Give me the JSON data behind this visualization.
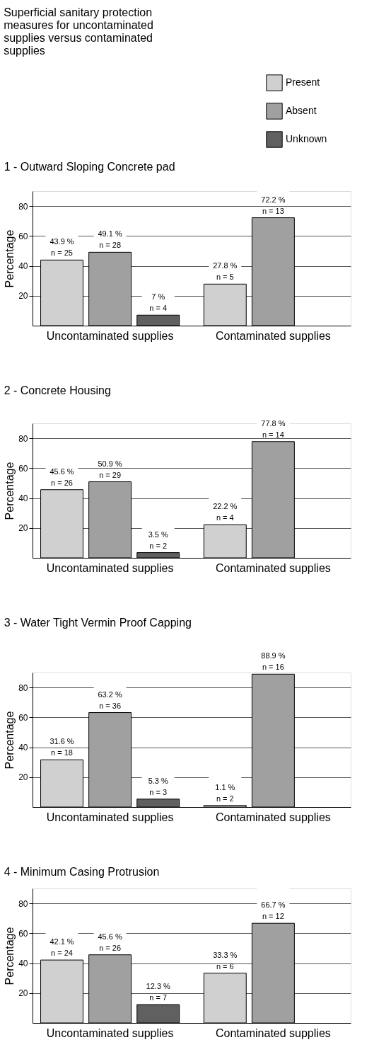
{
  "chart_data": [
    {
      "type": "bar",
      "title": "1 - Outward Sloping Concrete pad",
      "annotations": [
        "Superficial sanitary protection measures for uncontaminated supplies versus contaminated supplies"
      ],
      "ylabel": "Percentage",
      "categories": [
        "Uncontaminated supplies",
        "Contaminated supplies"
      ],
      "ylim": [
        0,
        90
      ],
      "yticks": [
        20,
        40,
        60,
        80
      ],
      "grid": "y",
      "legend": "top right",
      "series": [
        {
          "name": "Present",
          "color": "#d0d0d0",
          "values": [
            43.9,
            27.8
          ],
          "value_labels": [
            "43.9 %\nn = 25",
            "27.8 %\nn = 5"
          ]
        },
        {
          "name": "Absent",
          "color": "#a0a0a0",
          "values": [
            49.1,
            72.2
          ],
          "value_labels": [
            "49.1 %\nn = 28",
            "72.2 %\nn = 13"
          ]
        },
        {
          "name": "Unknown",
          "color": "#606060",
          "values": [
            7,
            null
          ],
          "value_labels": [
            "7 %\nn = 4",
            null
          ]
        }
      ]
    },
    {
      "type": "bar",
      "title": "2 - Concrete Housing",
      "ylabel": "Percentage",
      "categories": [
        "Uncontaminated supplies",
        "Contaminated supplies"
      ],
      "ylim": [
        0,
        90
      ],
      "yticks": [
        20,
        40,
        60,
        80
      ],
      "grid": "y",
      "series": [
        {
          "color": "#d0d0d0",
          "values": [
            45.6,
            22.2
          ],
          "value_labels": [
            "45.6 %\nn = 26",
            "22.2 %\nn = 4"
          ]
        },
        {
          "color": "#a0a0a0",
          "values": [
            50.9,
            77.8
          ],
          "value_labels": [
            "50.9 %\nn = 29",
            "77.8 %\nn = 14"
          ]
        },
        {
          "color": "#606060",
          "values": [
            3.5,
            null
          ],
          "value_labels": [
            "3.5 %\nn = 2",
            null
          ]
        }
      ]
    },
    {
      "type": "bar",
      "title": "3 - Water Tight Vermin Proof Capping",
      "ylabel": "Percentage",
      "categories": [
        "Uncontaminated supplies",
        "Contaminated supplies"
      ],
      "ylim": [
        0,
        90
      ],
      "yticks": [
        20,
        40,
        60,
        80
      ],
      "grid": "y",
      "series": [
        {
          "color": "#d0d0d0",
          "values": [
            31.6,
            1.1
          ],
          "value_labels": [
            "31.6 %\nn = 18",
            "1.1 %\nn = 2"
          ]
        },
        {
          "color": "#a0a0a0",
          "values": [
            63.2,
            88.9
          ],
          "value_labels": [
            "63.2 %\nn = 36",
            "88.9 %\nn = 16"
          ]
        },
        {
          "color": "#606060",
          "values": [
            5.3,
            null
          ],
          "value_labels": [
            "5.3 %\nn = 3",
            null
          ]
        }
      ]
    },
    {
      "type": "bar",
      "title": "4 - Minimum Casing Protrusion",
      "ylabel": "Percentage",
      "categories": [
        "Uncontaminated supplies",
        "Contaminated supplies"
      ],
      "ylim": [
        0,
        90
      ],
      "yticks": [
        20,
        40,
        60,
        80
      ],
      "grid": "y",
      "series": [
        {
          "color": "#d0d0d0",
          "values": [
            42.1,
            33.3
          ],
          "value_labels": [
            "42.1 %\nn = 24",
            "33.3 %\nn = 6"
          ]
        },
        {
          "color": "#a0a0a0",
          "values": [
            45.6,
            66.7
          ],
          "value_labels": [
            "45.6 %\nn = 26",
            "66.7 %\nn = 12"
          ]
        },
        {
          "color": "#606060",
          "values": [
            12.3,
            null
          ],
          "value_labels": [
            "12.3 %\nn = 7",
            null
          ]
        }
      ]
    }
  ]
}
